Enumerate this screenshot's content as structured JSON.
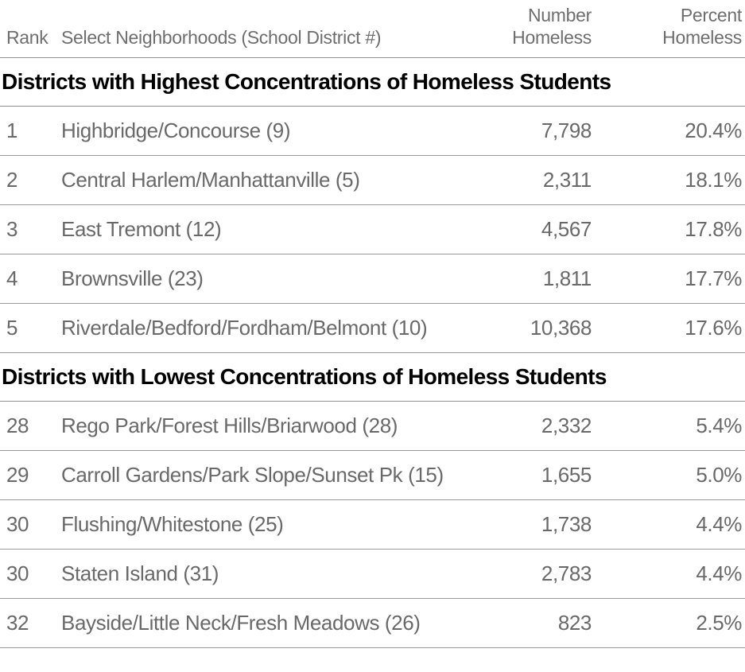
{
  "colors": {
    "row_text": "#696969",
    "header_text": "#6e6e6e",
    "section_text": "#000000",
    "rule": "#8f8f8f",
    "background": "#ffffff"
  },
  "table": {
    "columns": {
      "rank": "Rank",
      "neighborhood": "Select Neighborhoods (School District #)",
      "number_line1": "Number",
      "number_line2": "Homeless",
      "percent_line1": "Percent",
      "percent_line2": "Homeless"
    },
    "sections": [
      {
        "title": "Districts with Highest Concentrations of Homeless Students",
        "rows": [
          {
            "rank": "1",
            "neighborhood": "Highbridge/Concourse (9)",
            "number": "7,798",
            "percent": "20.4%"
          },
          {
            "rank": "2",
            "neighborhood": "Central Harlem/Manhattanville (5)",
            "number": "2,311",
            "percent": "18.1%"
          },
          {
            "rank": "3",
            "neighborhood": "East Tremont (12)",
            "number": "4,567",
            "percent": "17.8%"
          },
          {
            "rank": "4",
            "neighborhood": "Brownsville (23)",
            "number": "1,811",
            "percent": "17.7%"
          },
          {
            "rank": "5",
            "neighborhood": "Riverdale/Bedford/Fordham/Belmont (10)",
            "number": "10,368",
            "percent": "17.6%"
          }
        ]
      },
      {
        "title": "Districts with Lowest Concentrations of Homeless Students",
        "rows": [
          {
            "rank": "28",
            "neighborhood": "Rego Park/Forest Hills/Briarwood (28)",
            "number": "2,332",
            "percent": "5.4%"
          },
          {
            "rank": "29",
            "neighborhood": "Carroll Gardens/Park Slope/Sunset Pk (15)",
            "number": "1,655",
            "percent": "5.0%"
          },
          {
            "rank": "30",
            "neighborhood": "Flushing/Whitestone (25)",
            "number": "1,738",
            "percent": "4.4%"
          },
          {
            "rank": "30",
            "neighborhood": "Staten Island (31)",
            "number": "2,783",
            "percent": "4.4%"
          },
          {
            "rank": "32",
            "neighborhood": "Bayside/Little Neck/Fresh Meadows (26)",
            "number": "823",
            "percent": "2.5%"
          }
        ]
      }
    ]
  },
  "chart_data": {
    "type": "table",
    "title": "",
    "columns": [
      "Rank",
      "Select Neighborhoods (School District #)",
      "Number Homeless",
      "Percent Homeless"
    ],
    "sections": [
      {
        "label": "Districts with Highest Concentrations of Homeless Students",
        "rows": [
          [
            1,
            "Highbridge/Concourse (9)",
            7798,
            20.4
          ],
          [
            2,
            "Central Harlem/Manhattanville (5)",
            2311,
            18.1
          ],
          [
            3,
            "East Tremont (12)",
            4567,
            17.8
          ],
          [
            4,
            "Brownsville (23)",
            1811,
            17.7
          ],
          [
            5,
            "Riverdale/Bedford/Fordham/Belmont (10)",
            10368,
            17.6
          ]
        ]
      },
      {
        "label": "Districts with Lowest Concentrations of Homeless Students",
        "rows": [
          [
            28,
            "Rego Park/Forest Hills/Briarwood (28)",
            2332,
            5.4
          ],
          [
            29,
            "Carroll Gardens/Park Slope/Sunset Pk (15)",
            1655,
            5.0
          ],
          [
            30,
            "Flushing/Whitestone (25)",
            1738,
            4.4
          ],
          [
            30,
            "Staten Island (31)",
            2783,
            4.4
          ],
          [
            32,
            "Bayside/Little Neck/Fresh Meadows (26)",
            823,
            2.5
          ]
        ]
      }
    ]
  }
}
